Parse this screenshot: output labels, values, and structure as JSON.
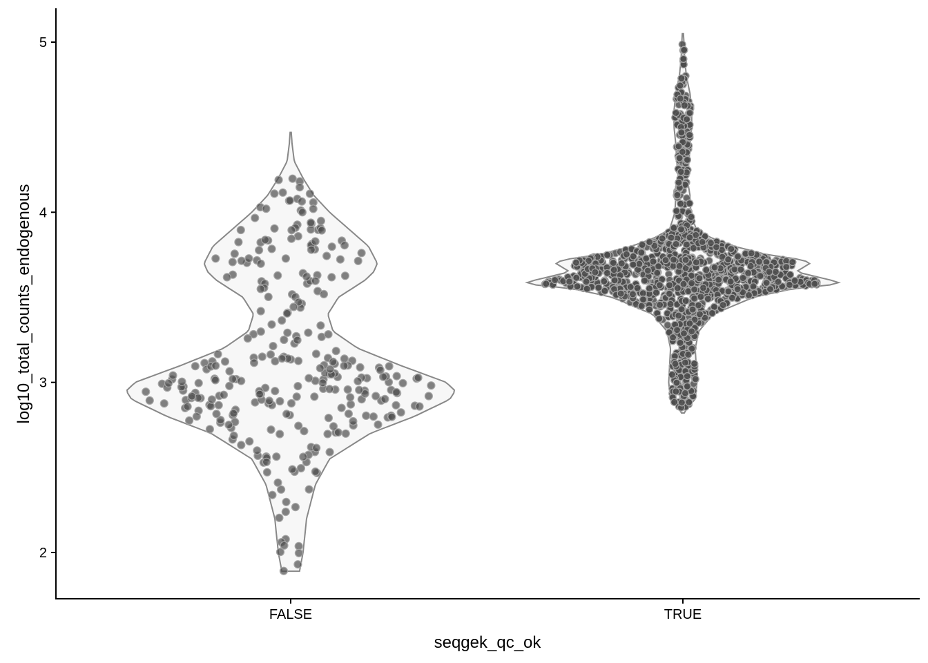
{
  "chart_data": {
    "type": "violin",
    "xlabel": "seqgek_qc_ok",
    "ylabel": "log10_total_counts_endogenous",
    "categories": [
      "FALSE",
      "TRUE"
    ],
    "y_ticks": [
      2,
      3,
      4,
      5
    ],
    "ylim": [
      1.72,
      5.2
    ],
    "grid": false,
    "legend": "none",
    "violins": [
      {
        "category": "FALSE",
        "y_min": 1.89,
        "y_max": 4.47,
        "density_profile": [
          [
            1.89,
            0.05
          ],
          [
            2.0,
            0.07
          ],
          [
            2.2,
            0.09
          ],
          [
            2.4,
            0.14
          ],
          [
            2.55,
            0.22
          ],
          [
            2.7,
            0.45
          ],
          [
            2.8,
            0.7
          ],
          [
            2.9,
            0.9
          ],
          [
            2.95,
            0.93
          ],
          [
            3.0,
            0.88
          ],
          [
            3.1,
            0.62
          ],
          [
            3.2,
            0.38
          ],
          [
            3.3,
            0.24
          ],
          [
            3.4,
            0.21
          ],
          [
            3.5,
            0.27
          ],
          [
            3.6,
            0.42
          ],
          [
            3.65,
            0.47
          ],
          [
            3.7,
            0.49
          ],
          [
            3.8,
            0.44
          ],
          [
            3.9,
            0.33
          ],
          [
            4.0,
            0.22
          ],
          [
            4.1,
            0.13
          ],
          [
            4.2,
            0.07
          ],
          [
            4.3,
            0.02
          ],
          [
            4.4,
            0.008
          ],
          [
            4.47,
            0.003
          ]
        ],
        "n_points": 300
      },
      {
        "category": "TRUE",
        "y_min": 2.82,
        "y_max": 5.05,
        "density_profile": [
          [
            2.82,
            0.008
          ],
          [
            2.86,
            0.03
          ],
          [
            2.9,
            0.07
          ],
          [
            3.0,
            0.08
          ],
          [
            3.1,
            0.075
          ],
          [
            3.2,
            0.07
          ],
          [
            3.3,
            0.09
          ],
          [
            3.4,
            0.17
          ],
          [
            3.5,
            0.4
          ],
          [
            3.55,
            0.62
          ],
          [
            3.58,
            0.9
          ],
          [
            3.6,
            0.84
          ],
          [
            3.65,
            0.64
          ],
          [
            3.7,
            0.72
          ],
          [
            3.72,
            0.68
          ],
          [
            3.75,
            0.48
          ],
          [
            3.8,
            0.29
          ],
          [
            3.85,
            0.16
          ],
          [
            3.9,
            0.075
          ],
          [
            4.0,
            0.045
          ],
          [
            4.1,
            0.04
          ],
          [
            4.2,
            0.025
          ],
          [
            4.3,
            0.035
          ],
          [
            4.4,
            0.04
          ],
          [
            4.5,
            0.05
          ],
          [
            4.6,
            0.05
          ],
          [
            4.7,
            0.04
          ],
          [
            4.8,
            0.02
          ],
          [
            4.9,
            0.01
          ],
          [
            5.0,
            0.006
          ],
          [
            5.05,
            0.003
          ]
        ],
        "n_points": 4000
      }
    ],
    "colors": {
      "violin_fill": "#f7f7f7",
      "violin_stroke": "#888888",
      "point_fill": "#4d4d4d",
      "point_stroke": "#a6a6a6"
    }
  }
}
